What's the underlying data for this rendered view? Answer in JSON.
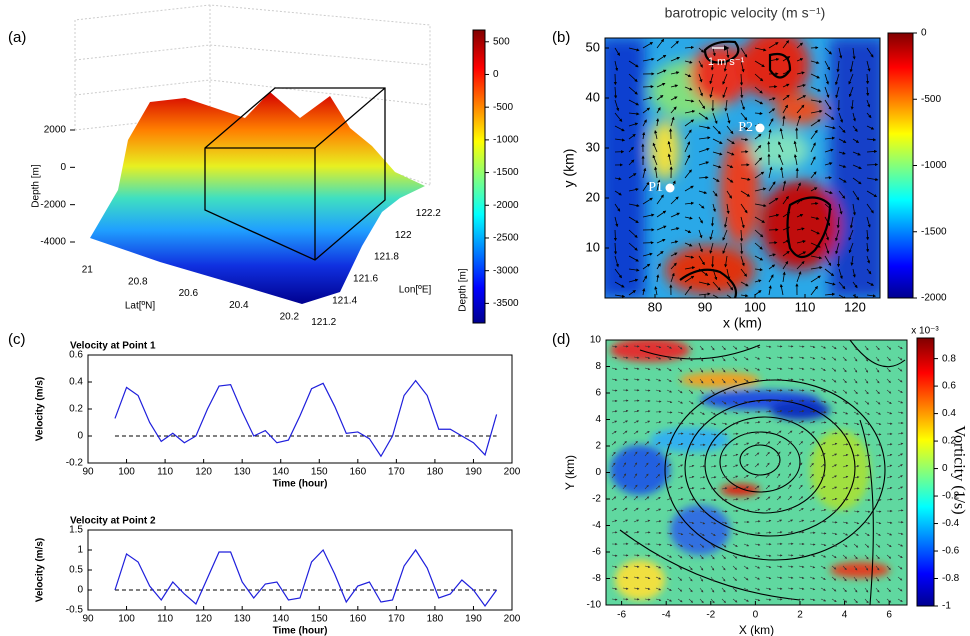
{
  "chart_data": [
    {
      "type": "surface3d",
      "panel_label": "(a)",
      "xlabel": "Lat[ºN]",
      "xlim": [
        21.1,
        20.15
      ],
      "xticks": [
        21,
        20.8,
        20.6,
        20.4,
        20.2
      ],
      "ylabel": "Lon[ºE]",
      "ylim": [
        121.15,
        122.25
      ],
      "yticks": [
        121.2,
        121.4,
        121.6,
        121.8,
        122,
        122.2
      ],
      "zlabel": "Depth [m]",
      "zlim": [
        -4000,
        2000
      ],
      "zticks": [
        -4000,
        -2000,
        0,
        2000
      ],
      "colorbar_label": "Depth [m]",
      "clim": [
        -3800,
        680
      ],
      "cticks": [
        500,
        0,
        -500,
        -1000,
        -1500,
        -2000,
        -2500,
        -3000,
        -3500
      ]
    },
    {
      "type": "heatmap",
      "panel_label": "(b)",
      "title": "barotropic velocity (m s⁻¹)",
      "xlabel": "x (km)",
      "xlim": [
        70,
        125
      ],
      "xticks": [
        80,
        90,
        100,
        110,
        120
      ],
      "ylabel": "y (km)",
      "ylim": [
        0,
        52
      ],
      "yticks": [
        10,
        20,
        30,
        40,
        50
      ],
      "clim": [
        -2000,
        0
      ],
      "cticks": [
        0,
        -500,
        -1000,
        -1500,
        -2000
      ],
      "scale_label": "1 m s⁻¹",
      "points": [
        {
          "label": "P1",
          "x": 83,
          "y": 22
        },
        {
          "label": "P2",
          "x": 101,
          "y": 34
        }
      ]
    },
    {
      "type": "line",
      "panel_label": "(c)",
      "title": "Velocity at Point 1",
      "xlabel": "Time (hour)",
      "ylabel": "Velocity (m/s)",
      "xlim": [
        90,
        200
      ],
      "xticks": [
        90,
        100,
        110,
        120,
        130,
        140,
        150,
        160,
        170,
        180,
        190,
        200
      ],
      "ylim": [
        -0.2,
        0.6
      ],
      "yticks": [
        -0.2,
        0,
        0.2,
        0.4,
        0.6
      ],
      "hline": 0,
      "x": [
        97,
        100,
        103,
        106,
        109,
        112,
        115,
        118,
        121,
        124,
        127,
        130,
        133,
        136,
        139,
        142,
        145,
        148,
        151,
        154,
        157,
        160,
        163,
        166,
        169,
        172,
        175,
        178,
        181,
        184,
        187,
        190,
        193,
        196
      ],
      "series": [
        {
          "color": "#1f1fdc",
          "values": [
            0.13,
            0.36,
            0.3,
            0.1,
            -0.04,
            0.02,
            -0.05,
            0.0,
            0.2,
            0.37,
            0.38,
            0.18,
            0.0,
            0.04,
            -0.05,
            -0.03,
            0.15,
            0.35,
            0.39,
            0.22,
            0.02,
            0.03,
            -0.02,
            -0.15,
            0.0,
            0.3,
            0.41,
            0.3,
            0.05,
            0.05,
            0.0,
            -0.05,
            -0.14,
            0.16
          ]
        }
      ]
    },
    {
      "type": "line",
      "title": "Velocity at Point 2",
      "xlabel": "Time (hour)",
      "ylabel": "Velocity (m/s)",
      "xlim": [
        90,
        200
      ],
      "xticks": [
        90,
        100,
        110,
        120,
        130,
        140,
        150,
        160,
        170,
        180,
        190,
        200
      ],
      "ylim": [
        -0.5,
        1.5
      ],
      "yticks": [
        -0.5,
        0,
        0.5,
        1,
        1.5
      ],
      "hline": 0,
      "x": [
        97,
        100,
        103,
        106,
        109,
        112,
        115,
        118,
        121,
        124,
        127,
        130,
        133,
        136,
        139,
        142,
        145,
        148,
        151,
        154,
        157,
        160,
        163,
        166,
        169,
        172,
        175,
        178,
        181,
        184,
        187,
        190,
        193,
        196
      ],
      "series": [
        {
          "color": "#1f1fdc",
          "values": [
            0.0,
            0.9,
            0.7,
            0.1,
            -0.25,
            0.2,
            -0.1,
            -0.35,
            0.3,
            0.95,
            0.95,
            0.2,
            -0.2,
            0.15,
            0.2,
            -0.25,
            -0.2,
            0.7,
            1.0,
            0.4,
            -0.3,
            0.1,
            0.2,
            -0.3,
            -0.25,
            0.6,
            1.0,
            0.55,
            -0.2,
            -0.1,
            0.25,
            0.0,
            -0.4,
            0.0
          ]
        }
      ]
    },
    {
      "type": "heatmap",
      "panel_label": "(d)",
      "xlabel": "X (km)",
      "xlim": [
        -6.7,
        6.8
      ],
      "xticks": [
        -6,
        -4,
        -2,
        0,
        2,
        4,
        6
      ],
      "ylabel": "Y (km)",
      "ylim": [
        -10,
        10
      ],
      "yticks": [
        -10,
        -8,
        -6,
        -4,
        -2,
        0,
        2,
        4,
        6,
        8,
        10
      ],
      "clim": [
        -1,
        0.95
      ],
      "cticks": [
        0.8,
        0.6,
        0.4,
        0.2,
        0,
        -0.2,
        -0.4,
        -0.6,
        -0.8,
        -1
      ],
      "colorbar_exponent": "x 10⁻³",
      "colorbar_label": "Vorticity  (1/s)"
    }
  ]
}
